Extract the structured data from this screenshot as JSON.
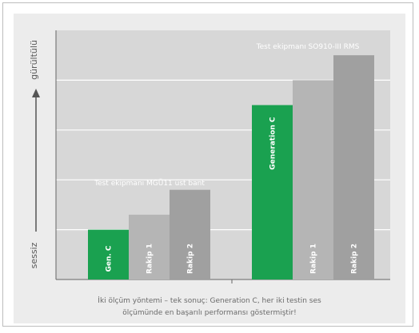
{
  "chart_data": {
    "type": "bar",
    "ylabel_top": "gürültülü",
    "ylabel_bottom": "sessiz",
    "ylim": [
      0,
      5
    ],
    "grid": true,
    "groups": [
      {
        "name": "Test ekipmanı MGÜ11 üst bant",
        "bars": [
          {
            "label": "Gen. C",
            "value": 1.0,
            "highlight": true
          },
          {
            "label": "Rakip 1",
            "value": 1.3,
            "highlight": false
          },
          {
            "label": "Rakip 2",
            "value": 1.8,
            "highlight": false
          }
        ]
      },
      {
        "name": "Test ekipmanı SO910-III RMS",
        "bars": [
          {
            "label": "Generation C",
            "value": 3.5,
            "highlight": true
          },
          {
            "label": "Rakip 1",
            "value": 4.0,
            "highlight": false
          },
          {
            "label": "Rakip 2",
            "value": 4.5,
            "highlight": false
          }
        ]
      }
    ],
    "colors": {
      "highlight": "#1aa150",
      "rakip1": "#b5b5b5",
      "rakip2": "#a0a0a0",
      "grid": "#ffffff",
      "axis": "#666666"
    }
  },
  "caption_line1": "İki ölçüm yöntemi – tek sonuç: Generation C, her iki testin ses",
  "caption_line2": "ölçümünde en başarılı performansı göstermiştir!"
}
